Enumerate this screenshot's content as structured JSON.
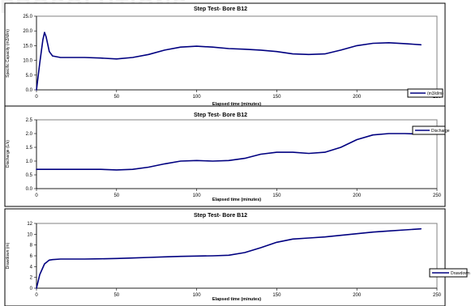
{
  "watermark": "PROSOLUTIONS",
  "chart_data": [
    {
      "type": "line",
      "title": "Step Test- Bore B12",
      "xlabel": "Elapsed time (minutes)",
      "ylabel": "Specific Capacity (m3/d/m)",
      "xlim": [
        0,
        250
      ],
      "ylim": [
        0,
        25
      ],
      "xticks": [
        0,
        50,
        100,
        150,
        200,
        250
      ],
      "yticks": [
        0.0,
        5.0,
        10.0,
        15.0,
        20.0,
        25.0
      ],
      "ytick_labels": [
        "0.0",
        "5.0",
        "10.0",
        "15.0",
        "20.0",
        "25.0"
      ],
      "legend_position": "right",
      "series": [
        {
          "name": "(m3/d/m)",
          "color": "#000080",
          "x": [
            0,
            2,
            4,
            5,
            6,
            8,
            10,
            15,
            20,
            30,
            40,
            50,
            60,
            70,
            80,
            90,
            100,
            110,
            120,
            130,
            140,
            150,
            160,
            170,
            180,
            190,
            200,
            210,
            220,
            230,
            240
          ],
          "y": [
            0,
            9,
            17,
            19.5,
            18,
            13,
            11.5,
            11,
            11,
            11,
            10.8,
            10.5,
            11,
            12,
            13.5,
            14.5,
            14.8,
            14.5,
            14,
            13.8,
            13.5,
            13,
            12.2,
            12,
            12.2,
            13.5,
            15,
            15.8,
            16,
            15.7,
            15.3
          ]
        }
      ]
    },
    {
      "type": "line",
      "title": "Step Test- Bore B12",
      "xlabel": "Elapsed time (minutes)",
      "ylabel": "Discharge (L/s)",
      "xlim": [
        0,
        250
      ],
      "ylim": [
        0,
        2.5
      ],
      "xticks": [
        0,
        50,
        100,
        150,
        200,
        250
      ],
      "yticks": [
        0.0,
        0.5,
        1.0,
        1.5,
        2.0,
        2.5
      ],
      "ytick_labels": [
        "0.0",
        "0.5",
        "1.0",
        "1.5",
        "2.0",
        "2.5"
      ],
      "legend_position": "top-right",
      "series": [
        {
          "name": "Discharge",
          "color": "#000080",
          "x": [
            0,
            20,
            40,
            50,
            60,
            70,
            80,
            90,
            100,
            110,
            120,
            130,
            140,
            150,
            160,
            170,
            180,
            190,
            200,
            210,
            220,
            230,
            240
          ],
          "y": [
            0.7,
            0.7,
            0.7,
            0.68,
            0.7,
            0.78,
            0.9,
            1.0,
            1.02,
            1.0,
            1.02,
            1.1,
            1.25,
            1.32,
            1.32,
            1.28,
            1.32,
            1.5,
            1.78,
            1.95,
            2.0,
            2.0,
            1.98
          ]
        }
      ]
    },
    {
      "type": "line",
      "title": "Step Test- Bore B12",
      "xlabel": "Elapsed time (minutes)",
      "ylabel": "Drawdown (m)",
      "xlim": [
        0,
        250
      ],
      "ylim": [
        0,
        12
      ],
      "xticks": [
        0,
        50,
        100,
        150,
        200,
        250
      ],
      "yticks": [
        0,
        2,
        4,
        6,
        8,
        10,
        12
      ],
      "ytick_labels": [
        "0",
        "2",
        "4",
        "6",
        "8",
        "10",
        "12"
      ],
      "legend_position": "bottom-right",
      "series": [
        {
          "name": "Drawdown",
          "color": "#000080",
          "x": [
            0,
            2,
            5,
            8,
            10,
            15,
            20,
            30,
            40,
            50,
            60,
            70,
            80,
            90,
            100,
            110,
            120,
            130,
            140,
            150,
            160,
            170,
            180,
            190,
            200,
            210,
            220,
            230,
            240
          ],
          "y": [
            0,
            2.5,
            4.5,
            5.2,
            5.3,
            5.4,
            5.4,
            5.4,
            5.45,
            5.5,
            5.6,
            5.7,
            5.8,
            5.9,
            5.95,
            6.0,
            6.1,
            6.6,
            7.5,
            8.5,
            9.1,
            9.3,
            9.5,
            9.8,
            10.1,
            10.4,
            10.6,
            10.8,
            11.0
          ]
        }
      ]
    }
  ]
}
